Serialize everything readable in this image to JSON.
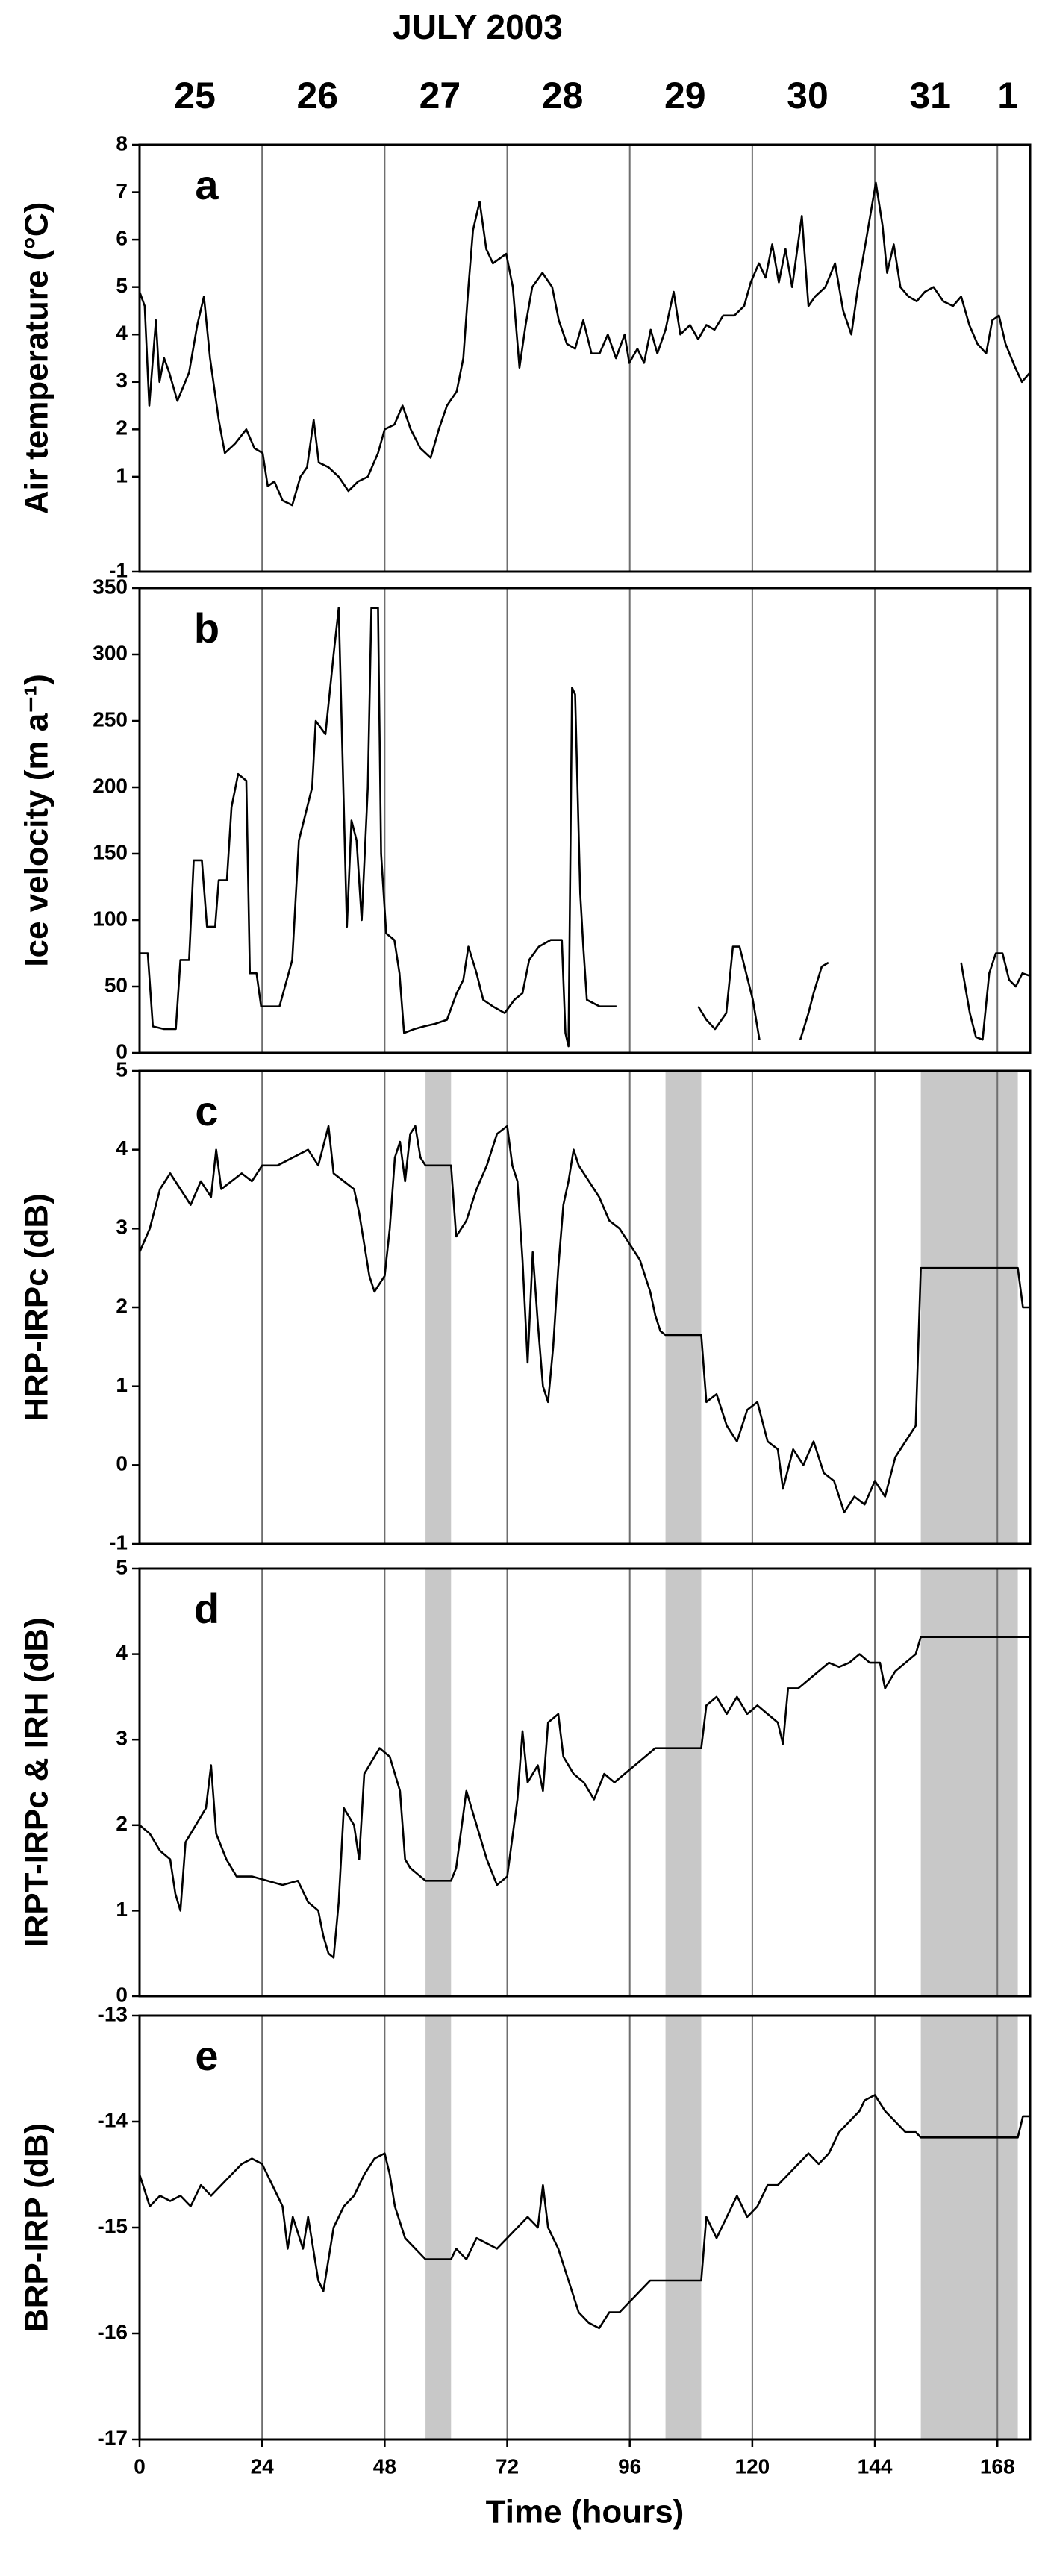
{
  "header": {
    "title": "JULY 2003",
    "days": [
      "25",
      "26",
      "27",
      "28",
      "29",
      "30",
      "31",
      "1"
    ]
  },
  "chart_data": [
    {
      "type": "line",
      "panel_label": "a",
      "y_label": "Air temperature (°C)",
      "color": "#000000",
      "xlim": [
        0,
        174.4
      ],
      "xticks": [
        0,
        24,
        48,
        72,
        96,
        120,
        144,
        168
      ],
      "grid_x": true,
      "x_tick_labels": false,
      "ylim": [
        -1,
        8
      ],
      "yticks": [
        -1,
        1,
        2,
        3,
        4,
        5,
        6,
        7,
        8
      ],
      "x": [
        0,
        1,
        1.9,
        3.2,
        3.9,
        4.8,
        5.8,
        7.4,
        9.7,
        11.3,
        12.6,
        13.8,
        15.5,
        16.7,
        18.7,
        20.9,
        22.5,
        24.1,
        25.1,
        26.4,
        28,
        29.9,
        31.5,
        32.8,
        34.1,
        35.1,
        37,
        39,
        40.9,
        42.8,
        44.7,
        46.7,
        48,
        49.9,
        51.5,
        53.1,
        55,
        57,
        58.6,
        60.2,
        62.1,
        63.4,
        64.4,
        65.3,
        66.6,
        67.9,
        69.2,
        70.5,
        71.8,
        73.1,
        74.4,
        75.6,
        76.9,
        78.9,
        80.8,
        82.1,
        83.7,
        85.3,
        86.9,
        88.5,
        90.1,
        91.7,
        93.3,
        95,
        95.9,
        97.5,
        98.8,
        100.1,
        101.4,
        103,
        104.6,
        105.9,
        107.8,
        109.4,
        111,
        112.6,
        114.3,
        116.5,
        118.4,
        119.7,
        121.3,
        122.6,
        123.9,
        125.2,
        126.5,
        127.8,
        129.7,
        131,
        132.3,
        134.3,
        136.2,
        137.8,
        139.4,
        140.7,
        142.3,
        144.2,
        145.5,
        146.4,
        147.7,
        149,
        150.6,
        152.2,
        153.8,
        155.5,
        157.4,
        159.3,
        160.9,
        162.5,
        164.1,
        165.8,
        167,
        168.3,
        169.6,
        171.5,
        172.8,
        174.4
      ],
      "values": [
        4.9,
        4.6,
        2.5,
        4.3,
        3.0,
        3.5,
        3.2,
        2.6,
        3.2,
        4.2,
        4.8,
        3.5,
        2.2,
        1.5,
        1.7,
        2.0,
        1.6,
        1.5,
        0.8,
        0.9,
        0.5,
        0.4,
        1.0,
        1.2,
        2.2,
        1.3,
        1.2,
        1.0,
        0.7,
        0.9,
        1.0,
        1.5,
        2.0,
        2.1,
        2.5,
        2.0,
        1.6,
        1.4,
        2.0,
        2.5,
        2.8,
        3.5,
        5.0,
        6.2,
        6.8,
        5.8,
        5.5,
        5.6,
        5.7,
        5.0,
        3.3,
        4.2,
        5.0,
        5.3,
        5.0,
        4.3,
        3.8,
        3.7,
        4.3,
        3.6,
        3.6,
        4.0,
        3.5,
        4.0,
        3.4,
        3.7,
        3.4,
        4.1,
        3.6,
        4.1,
        4.9,
        4.0,
        4.2,
        3.9,
        4.2,
        4.1,
        4.4,
        4.4,
        4.6,
        5.1,
        5.5,
        5.2,
        5.9,
        5.1,
        5.8,
        5.0,
        6.5,
        4.6,
        4.8,
        5.0,
        5.5,
        4.5,
        4.0,
        5.0,
        6.0,
        7.2,
        6.3,
        5.3,
        5.9,
        5.0,
        4.8,
        4.7,
        4.9,
        5.0,
        4.7,
        4.6,
        4.8,
        4.2,
        3.8,
        3.6,
        4.3,
        4.4,
        3.8,
        3.3,
        3.0,
        3.2
      ]
    },
    {
      "type": "line",
      "panel_label": "b",
      "y_label": "Ice velocity (m a⁻¹)",
      "color": "#000000",
      "xlim": [
        0,
        174.4
      ],
      "xticks": [
        0,
        24,
        48,
        72,
        96,
        120,
        144,
        168
      ],
      "grid_x": true,
      "x_tick_labels": false,
      "ylim": [
        0,
        350
      ],
      "yticks": [
        0,
        50,
        100,
        150,
        200,
        250,
        300,
        350
      ],
      "x": [
        0,
        1.6,
        2.6,
        4.8,
        7.1,
        8,
        9.7,
        10.6,
        12.2,
        13.2,
        14.8,
        15.5,
        17.1,
        18,
        19.3,
        20.9,
        21.6,
        22.9,
        23.8,
        25.8,
        27.4,
        29.9,
        31.2,
        33.8,
        34.5,
        36.4,
        38,
        39,
        39.9,
        40.6,
        41.5,
        42.5,
        43.5,
        44.7,
        45.4,
        46.7,
        47.3,
        48.3,
        49.9,
        50.9,
        51.8,
        53.8,
        55.7,
        57.9,
        60.2,
        62.1,
        63.4,
        64.4,
        66,
        67.3,
        69.2,
        71.5,
        73.4,
        75,
        76.3,
        78.2,
        80.5,
        82.7,
        83.4,
        84,
        84.7,
        85.3,
        86.3,
        86.9,
        87.6,
        90.1,
        93.4,
        101,
        109.4,
        111,
        112.7,
        114.9,
        116.2,
        117.5,
        118.8,
        120.1,
        121.4,
        125,
        129.4,
        131,
        132,
        133.6,
        134.9,
        148,
        160.9,
        162.6,
        163.8,
        165.1,
        166.4,
        167.7,
        169,
        170.3,
        171.6,
        172.9,
        174.4
      ],
      "values": [
        75,
        75,
        20,
        18,
        18,
        70,
        70,
        145,
        145,
        95,
        95,
        130,
        130,
        185,
        210,
        205,
        60,
        60,
        35,
        35,
        35,
        70,
        160,
        200,
        250,
        240,
        300,
        335,
        200,
        95,
        175,
        160,
        100,
        200,
        335,
        335,
        150,
        90,
        85,
        60,
        15,
        18,
        20,
        22,
        25,
        45,
        55,
        80,
        60,
        40,
        35,
        30,
        40,
        45,
        70,
        80,
        85,
        85,
        15,
        5,
        275,
        270,
        120,
        80,
        40,
        35,
        35,
        null,
        35,
        25,
        18,
        30,
        80,
        80,
        60,
        40,
        10,
        null,
        10,
        30,
        45,
        65,
        68,
        null,
        68,
        30,
        12,
        10,
        60,
        75,
        75,
        55,
        50,
        60,
        58
      ]
    },
    {
      "type": "line",
      "panel_label": "c",
      "y_label": "HRP-IRPc (dB)",
      "color": "#000000",
      "xlim": [
        0,
        174.4
      ],
      "xticks": [
        0,
        24,
        48,
        72,
        96,
        120,
        144,
        168
      ],
      "grid_x": true,
      "x_tick_labels": false,
      "ylim": [
        -1,
        5
      ],
      "yticks": [
        -1,
        0,
        1,
        2,
        3,
        4,
        5
      ],
      "shaded_spans": [
        [
          56,
          61
        ],
        [
          103,
          110
        ],
        [
          153,
          172
        ]
      ],
      "span_color": "#c8c8c8",
      "x": [
        0,
        2,
        4,
        6,
        8,
        10,
        12,
        14,
        15,
        16,
        18,
        20,
        22,
        24,
        27,
        30,
        33,
        35,
        37,
        38,
        40,
        42,
        43,
        44,
        45,
        46,
        48,
        49,
        50,
        51,
        52,
        53,
        54,
        55,
        56,
        61,
        62,
        64,
        66,
        68,
        70,
        72,
        73,
        74,
        75,
        76,
        77,
        78,
        79,
        80,
        81,
        82,
        83,
        84,
        85,
        86,
        88,
        90,
        92,
        94,
        96,
        98,
        100,
        101,
        102,
        103,
        110,
        111,
        113,
        115,
        117,
        119,
        121,
        123,
        125,
        126,
        128,
        130,
        132,
        134,
        136,
        138,
        140,
        142,
        144,
        146,
        148,
        150,
        152,
        153,
        172,
        173,
        174.4
      ],
      "values": [
        2.7,
        3.0,
        3.5,
        3.7,
        3.5,
        3.3,
        3.6,
        3.4,
        4.0,
        3.5,
        3.6,
        3.7,
        3.6,
        3.8,
        3.8,
        3.9,
        4.0,
        3.8,
        4.3,
        3.7,
        3.6,
        3.5,
        3.2,
        2.8,
        2.4,
        2.2,
        2.4,
        3.0,
        3.9,
        4.1,
        3.6,
        4.2,
        4.3,
        3.9,
        3.8,
        3.8,
        2.9,
        3.1,
        3.5,
        3.8,
        4.2,
        4.3,
        3.8,
        3.6,
        2.6,
        1.3,
        2.7,
        1.8,
        1.0,
        0.8,
        1.5,
        2.5,
        3.3,
        3.6,
        4.0,
        3.8,
        3.6,
        3.4,
        3.1,
        3.0,
        2.8,
        2.6,
        2.2,
        1.9,
        1.7,
        1.65,
        1.65,
        0.8,
        0.9,
        0.5,
        0.3,
        0.7,
        0.8,
        0.3,
        0.2,
        -0.3,
        0.2,
        0.0,
        0.3,
        -0.1,
        -0.2,
        -0.6,
        -0.4,
        -0.5,
        -0.2,
        -0.4,
        0.1,
        0.3,
        0.5,
        2.5,
        2.5,
        2.0,
        2.0
      ]
    },
    {
      "type": "line",
      "panel_label": "d",
      "y_label": "IRPT-IRPc & IRH (dB)",
      "color": "#000000",
      "xlim": [
        0,
        174.4
      ],
      "xticks": [
        0,
        24,
        48,
        72,
        96,
        120,
        144,
        168
      ],
      "grid_x": true,
      "x_tick_labels": false,
      "ylim": [
        0,
        5
      ],
      "yticks": [
        0,
        1,
        2,
        3,
        4,
        5
      ],
      "shaded_spans": [
        [
          56,
          61
        ],
        [
          103,
          110
        ],
        [
          153,
          172
        ]
      ],
      "span_color": "#c8c8c8",
      "x": [
        0,
        2,
        4,
        6,
        7,
        8,
        9,
        11,
        13,
        14,
        15,
        17,
        19,
        22,
        25,
        28,
        31,
        33,
        35,
        36,
        37,
        38,
        39,
        40,
        42,
        43,
        44,
        46,
        47,
        49,
        51,
        52,
        53,
        55,
        56,
        61,
        62,
        64,
        66,
        68,
        70,
        72,
        74,
        75,
        76,
        78,
        79,
        80,
        82,
        83,
        85,
        87,
        89,
        91,
        93,
        95,
        97,
        99,
        101,
        103,
        110,
        111,
        113,
        115,
        117,
        119,
        121,
        123,
        125,
        126,
        127,
        129,
        131,
        133,
        135,
        137,
        139,
        141,
        143,
        145,
        146,
        148,
        150,
        152,
        153,
        174.4
      ],
      "values": [
        2.0,
        1.9,
        1.7,
        1.6,
        1.2,
        1.0,
        1.8,
        2.0,
        2.2,
        2.7,
        1.9,
        1.6,
        1.4,
        1.4,
        1.35,
        1.3,
        1.35,
        1.1,
        1.0,
        0.7,
        0.5,
        0.45,
        1.1,
        2.2,
        2.0,
        1.6,
        2.6,
        2.8,
        2.9,
        2.8,
        2.4,
        1.6,
        1.5,
        1.4,
        1.35,
        1.35,
        1.5,
        2.4,
        2.0,
        1.6,
        1.3,
        1.4,
        2.3,
        3.1,
        2.5,
        2.7,
        2.4,
        3.2,
        3.3,
        2.8,
        2.6,
        2.5,
        2.3,
        2.6,
        2.5,
        2.6,
        2.7,
        2.8,
        2.9,
        2.9,
        2.9,
        3.4,
        3.5,
        3.3,
        3.5,
        3.3,
        3.4,
        3.3,
        3.2,
        2.95,
        3.6,
        3.6,
        3.7,
        3.8,
        3.9,
        3.85,
        3.9,
        4.0,
        3.9,
        3.9,
        3.6,
        3.8,
        3.9,
        4.0,
        4.2,
        4.2
      ]
    },
    {
      "type": "line",
      "panel_label": "e",
      "y_label": "BRP-IRP (dB)",
      "x_label": "Time (hours)",
      "color": "#000000",
      "xlim": [
        0,
        174.4
      ],
      "xticks": [
        0,
        24,
        48,
        72,
        96,
        120,
        144,
        168
      ],
      "grid_x": true,
      "x_tick_labels": true,
      "ylim": [
        -17,
        -13
      ],
      "yticks": [
        -17,
        -16,
        -15,
        -14,
        -13
      ],
      "shaded_spans": [
        [
          56,
          61
        ],
        [
          103,
          110
        ],
        [
          153,
          172
        ]
      ],
      "span_color": "#c8c8c8",
      "x": [
        0,
        2,
        4,
        6,
        8,
        10,
        12,
        14,
        16,
        18,
        20,
        22,
        24,
        26,
        28,
        29,
        30,
        32,
        33,
        35,
        36,
        37,
        38,
        40,
        42,
        44,
        46,
        48,
        49,
        50,
        52,
        54,
        56,
        61,
        62,
        64,
        66,
        68,
        70,
        72,
        74,
        76,
        78,
        79,
        80,
        82,
        84,
        86,
        88,
        90,
        92,
        94,
        96,
        98,
        100,
        103,
        110,
        111,
        113,
        115,
        117,
        119,
        121,
        123,
        125,
        127,
        129,
        131,
        133,
        135,
        137,
        139,
        141,
        142,
        144,
        146,
        148,
        150,
        152,
        153,
        172,
        173,
        174.4
      ],
      "values": [
        -14.5,
        -14.8,
        -14.7,
        -14.75,
        -14.7,
        -14.8,
        -14.6,
        -14.7,
        -14.6,
        -14.5,
        -14.4,
        -14.35,
        -14.4,
        -14.6,
        -14.8,
        -15.2,
        -14.9,
        -15.2,
        -14.9,
        -15.5,
        -15.6,
        -15.3,
        -15.0,
        -14.8,
        -14.7,
        -14.5,
        -14.35,
        -14.3,
        -14.5,
        -14.8,
        -15.1,
        -15.2,
        -15.3,
        -15.3,
        -15.2,
        -15.3,
        -15.1,
        -15.15,
        -15.2,
        -15.1,
        -15.0,
        -14.9,
        -15.0,
        -14.6,
        -15.0,
        -15.2,
        -15.5,
        -15.8,
        -15.9,
        -15.95,
        -15.8,
        -15.8,
        -15.7,
        -15.6,
        -15.5,
        -15.5,
        -15.5,
        -14.9,
        -15.1,
        -14.9,
        -14.7,
        -14.9,
        -14.8,
        -14.6,
        -14.6,
        -14.5,
        -14.4,
        -14.3,
        -14.4,
        -14.3,
        -14.1,
        -14.0,
        -13.9,
        -13.8,
        -13.75,
        -13.9,
        -14.0,
        -14.1,
        -14.1,
        -14.15,
        -14.15,
        -13.95,
        -13.95
      ]
    }
  ]
}
